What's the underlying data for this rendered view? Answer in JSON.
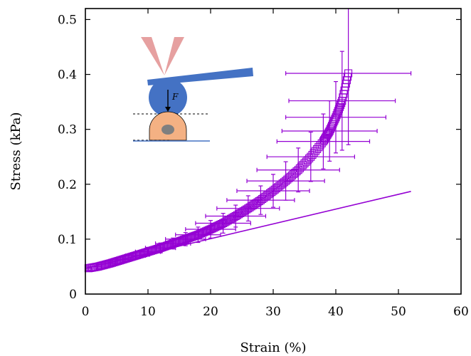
{
  "chart_data": {
    "type": "scatter",
    "title": "",
    "xlabel": "Strain (%)",
    "ylabel": "Stress (kPa)",
    "xlim": [
      0,
      60
    ],
    "ylim": [
      0,
      0.52
    ],
    "xticks": [
      "0",
      "10",
      "20",
      "30",
      "40",
      "50",
      "60"
    ],
    "yticks": [
      "0",
      "0.1",
      "0.2",
      "0.3",
      "0.4",
      "0.5"
    ],
    "grid": false,
    "legend": "none",
    "marker": "open-square",
    "series": [
      {
        "x": [
          0.5,
          2,
          4,
          6,
          8,
          10,
          12,
          14,
          16,
          18,
          20,
          22,
          24,
          26,
          28,
          30,
          32,
          34,
          36,
          38,
          39,
          40,
          41,
          42
        ],
        "y": [
          0.047,
          0.05,
          0.056,
          0.063,
          0.07,
          0.077,
          0.084,
          0.092,
          0.1,
          0.108,
          0.118,
          0.129,
          0.142,
          0.156,
          0.171,
          0.188,
          0.206,
          0.226,
          0.25,
          0.278,
          0.297,
          0.322,
          0.352,
          0.402
        ],
        "xerr": [
          0.5,
          0.6,
          0.8,
          1.2,
          1.6,
          2.0,
          2.4,
          2.8,
          3.2,
          3.6,
          4.0,
          4.4,
          4.8,
          5.0,
          5.4,
          5.8,
          6.2,
          6.6,
          7.0,
          7.4,
          7.6,
          8.0,
          8.5,
          10.0
        ],
        "yerr": [
          0.004,
          0.004,
          0.005,
          0.006,
          0.007,
          0.008,
          0.009,
          0.01,
          0.012,
          0.014,
          0.016,
          0.018,
          0.02,
          0.023,
          0.026,
          0.03,
          0.035,
          0.04,
          0.045,
          0.05,
          0.055,
          0.065,
          0.09,
          0.13
        ]
      }
    ],
    "fit_line": {
      "x": [
        0,
        52
      ],
      "y": [
        0.047,
        0.187
      ]
    },
    "colors": {
      "series": "#9400D3",
      "inset_cantilever": "#4472C4",
      "inset_bead": "#4472C4",
      "inset_cell": "#F4B183",
      "inset_nucleus": "#7F7F7F",
      "inset_laser": "#E6A0A0"
    },
    "inset": {
      "description_icons": [
        "laser-beam-icon",
        "cantilever-icon",
        "bead-icon",
        "cell-icon",
        "substrate-icon"
      ],
      "force_label": "F"
    }
  }
}
